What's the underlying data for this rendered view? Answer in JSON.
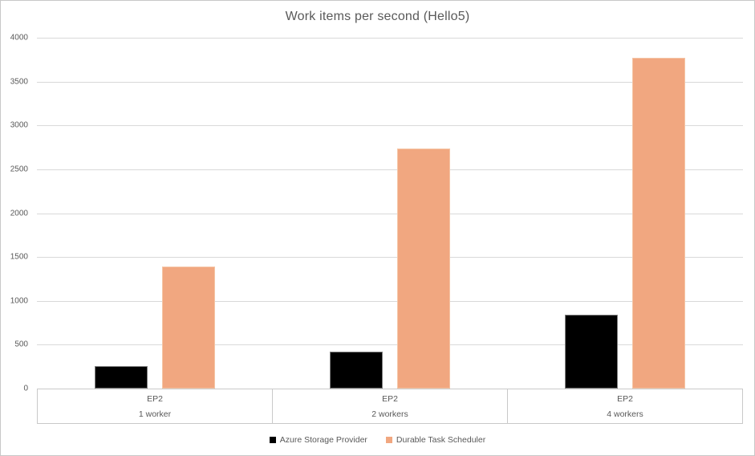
{
  "chart_data": {
    "type": "bar",
    "title": "Work items per second (Hello5)",
    "categories": [
      {
        "primary": "EP2",
        "secondary": "1 worker"
      },
      {
        "primary": "EP2",
        "secondary": "2 workers"
      },
      {
        "primary": "EP2",
        "secondary": "4 workers"
      }
    ],
    "series": [
      {
        "name": "Azure Storage Provider",
        "color": "#000000",
        "values": [
          260,
          420,
          845
        ]
      },
      {
        "name": "Durable Task Scheduler",
        "color": "#F1A780",
        "values": [
          1390,
          2735,
          3770
        ]
      }
    ],
    "y_axis": {
      "min": 0,
      "max": 4000,
      "tick_step": 500,
      "ticks": [
        0,
        500,
        1000,
        1500,
        2000,
        2500,
        3000,
        3500,
        4000
      ]
    },
    "legend": {
      "position": "bottom",
      "entries": [
        "Azure Storage Provider",
        "Durable Task Scheduler"
      ]
    },
    "grid": true,
    "vertical_gridlines": false
  },
  "colors": {
    "text": "#595959",
    "gridline": "#D9D9D9",
    "axis_line": "#C9C9C9",
    "frame": "#C8C8C8",
    "background": "#FFFFFF"
  }
}
